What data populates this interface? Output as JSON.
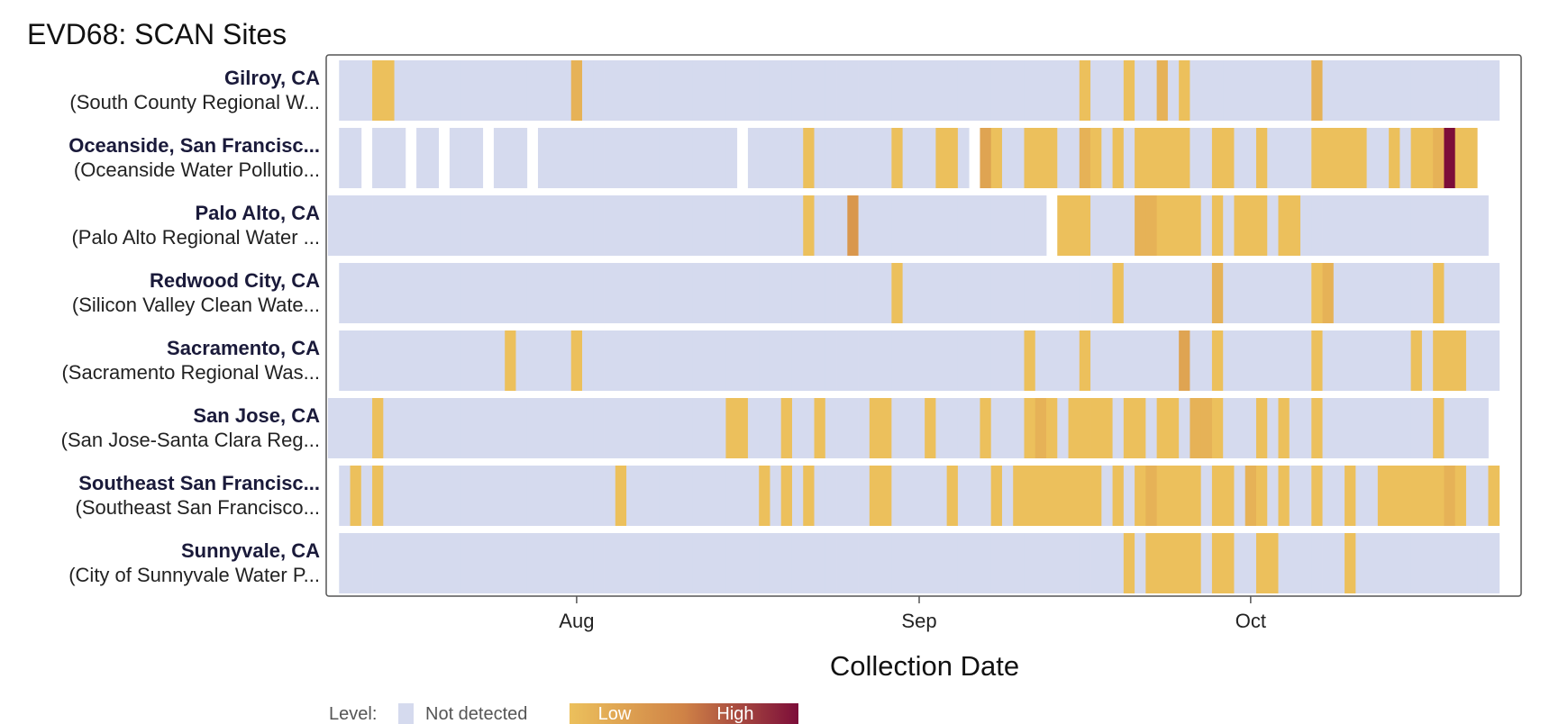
{
  "chart_data": {
    "type": "heatmap",
    "title": "EVD68: SCAN Sites",
    "xlabel": "Collection Date",
    "x_range": [
      "2025-07-10",
      "2025-10-24"
    ],
    "x_ticks": [
      {
        "label": "Aug",
        "date": "2025-08-01"
      },
      {
        "label": "Sep",
        "date": "2025-09-01"
      },
      {
        "label": "Oct",
        "date": "2025-10-01"
      }
    ],
    "legend": {
      "title": "Level:",
      "not_detected": "Not detected",
      "low": "Low",
      "high": "High"
    },
    "colors": {
      "not_detected": "#d5daee",
      "low": "#ecc05c",
      "mid": "#cf8246",
      "high": "#7c0d39",
      "frame": "#555555"
    },
    "level_scale": "0 = Not detected, 1 = Low ... 10 = High",
    "sites": [
      {
        "name": "Gilroy, CA",
        "facility": "(South County Regional W...",
        "start": "2025-07-11",
        "end": "2025-10-23",
        "missing": [],
        "detections": [
          {
            "date": "2025-07-14",
            "level": 1
          },
          {
            "date": "2025-07-15",
            "level": 1
          },
          {
            "date": "2025-08-01",
            "level": 2
          },
          {
            "date": "2025-09-16",
            "level": 1
          },
          {
            "date": "2025-09-20",
            "level": 1
          },
          {
            "date": "2025-09-23",
            "level": 2
          },
          {
            "date": "2025-09-25",
            "level": 1
          },
          {
            "date": "2025-10-07",
            "level": 2
          }
        ]
      },
      {
        "name": "Oceanside, San Francisc...",
        "facility": "(Oceanside Water Pollutio...",
        "start": "2025-07-11",
        "end": "2025-10-21",
        "missing": [
          "2025-07-13",
          "2025-07-17",
          "2025-07-20",
          "2025-07-24",
          "2025-07-28",
          "2025-08-16",
          "2025-09-06"
        ],
        "detections": [
          {
            "date": "2025-08-22",
            "level": 1
          },
          {
            "date": "2025-08-30",
            "level": 1
          },
          {
            "date": "2025-09-03",
            "level": 1
          },
          {
            "date": "2025-09-04",
            "level": 1
          },
          {
            "date": "2025-09-07",
            "level": 3
          },
          {
            "date": "2025-09-08",
            "level": 1
          },
          {
            "date": "2025-09-11",
            "level": 1
          },
          {
            "date": "2025-09-12",
            "level": 1
          },
          {
            "date": "2025-09-13",
            "level": 1
          },
          {
            "date": "2025-09-16",
            "level": 2
          },
          {
            "date": "2025-09-17",
            "level": 1
          },
          {
            "date": "2025-09-19",
            "level": 1
          },
          {
            "date": "2025-09-21",
            "level": 1
          },
          {
            "date": "2025-09-22",
            "level": 1
          },
          {
            "date": "2025-09-23",
            "level": 1
          },
          {
            "date": "2025-09-24",
            "level": 1
          },
          {
            "date": "2025-09-25",
            "level": 1
          },
          {
            "date": "2025-09-28",
            "level": 1
          },
          {
            "date": "2025-09-29",
            "level": 1
          },
          {
            "date": "2025-10-02",
            "level": 1
          },
          {
            "date": "2025-10-07",
            "level": 1
          },
          {
            "date": "2025-10-08",
            "level": 1
          },
          {
            "date": "2025-10-09",
            "level": 1
          },
          {
            "date": "2025-10-10",
            "level": 1
          },
          {
            "date": "2025-10-11",
            "level": 1
          },
          {
            "date": "2025-10-14",
            "level": 1
          },
          {
            "date": "2025-10-16",
            "level": 1
          },
          {
            "date": "2025-10-17",
            "level": 1
          },
          {
            "date": "2025-10-18",
            "level": 2
          },
          {
            "date": "2025-10-19",
            "level": 10
          },
          {
            "date": "2025-10-20",
            "level": 1
          },
          {
            "date": "2025-10-21",
            "level": 1
          }
        ]
      },
      {
        "name": "Palo Alto, CA",
        "facility": "(Palo Alto Regional Water ...",
        "start": "2025-07-10",
        "end": "2025-10-22",
        "missing": [
          "2025-09-13"
        ],
        "detections": [
          {
            "date": "2025-08-22",
            "level": 1
          },
          {
            "date": "2025-08-26",
            "level": 4
          },
          {
            "date": "2025-09-14",
            "level": 1
          },
          {
            "date": "2025-09-15",
            "level": 1
          },
          {
            "date": "2025-09-16",
            "level": 1
          },
          {
            "date": "2025-09-21",
            "level": 2
          },
          {
            "date": "2025-09-22",
            "level": 2
          },
          {
            "date": "2025-09-23",
            "level": 1
          },
          {
            "date": "2025-09-24",
            "level": 1
          },
          {
            "date": "2025-09-25",
            "level": 1
          },
          {
            "date": "2025-09-26",
            "level": 1
          },
          {
            "date": "2025-09-28",
            "level": 1
          },
          {
            "date": "2025-09-30",
            "level": 1
          },
          {
            "date": "2025-10-01",
            "level": 1
          },
          {
            "date": "2025-10-02",
            "level": 1
          },
          {
            "date": "2025-10-04",
            "level": 1
          },
          {
            "date": "2025-10-05",
            "level": 1
          }
        ]
      },
      {
        "name": "Redwood City, CA",
        "facility": "(Silicon Valley Clean Wate...",
        "start": "2025-07-11",
        "end": "2025-10-23",
        "missing": [],
        "detections": [
          {
            "date": "2025-08-30",
            "level": 1
          },
          {
            "date": "2025-09-19",
            "level": 1
          },
          {
            "date": "2025-09-28",
            "level": 2
          },
          {
            "date": "2025-10-07",
            "level": 1
          },
          {
            "date": "2025-10-08",
            "level": 2
          },
          {
            "date": "2025-10-18",
            "level": 1
          }
        ]
      },
      {
        "name": "Sacramento, CA",
        "facility": "(Sacramento Regional Was...",
        "start": "2025-07-11",
        "end": "2025-10-23",
        "missing": [],
        "detections": [
          {
            "date": "2025-07-26",
            "level": 1
          },
          {
            "date": "2025-08-01",
            "level": 1
          },
          {
            "date": "2025-09-11",
            "level": 1
          },
          {
            "date": "2025-09-16",
            "level": 1
          },
          {
            "date": "2025-09-25",
            "level": 3
          },
          {
            "date": "2025-09-28",
            "level": 1
          },
          {
            "date": "2025-10-07",
            "level": 1
          },
          {
            "date": "2025-10-16",
            "level": 1
          },
          {
            "date": "2025-10-18",
            "level": 1
          },
          {
            "date": "2025-10-19",
            "level": 1
          },
          {
            "date": "2025-10-20",
            "level": 1
          }
        ]
      },
      {
        "name": "San Jose, CA",
        "facility": "(San Jose-Santa Clara Reg...",
        "start": "2025-07-10",
        "end": "2025-10-22",
        "missing": [],
        "detections": [
          {
            "date": "2025-07-14",
            "level": 1
          },
          {
            "date": "2025-08-15",
            "level": 1
          },
          {
            "date": "2025-08-16",
            "level": 1
          },
          {
            "date": "2025-08-20",
            "level": 1
          },
          {
            "date": "2025-08-23",
            "level": 1
          },
          {
            "date": "2025-08-28",
            "level": 1
          },
          {
            "date": "2025-08-29",
            "level": 1
          },
          {
            "date": "2025-09-02",
            "level": 1
          },
          {
            "date": "2025-09-07",
            "level": 1
          },
          {
            "date": "2025-09-11",
            "level": 1
          },
          {
            "date": "2025-09-12",
            "level": 2
          },
          {
            "date": "2025-09-13",
            "level": 1
          },
          {
            "date": "2025-09-15",
            "level": 1
          },
          {
            "date": "2025-09-16",
            "level": 1
          },
          {
            "date": "2025-09-17",
            "level": 1
          },
          {
            "date": "2025-09-18",
            "level": 1
          },
          {
            "date": "2025-09-20",
            "level": 1
          },
          {
            "date": "2025-09-21",
            "level": 1
          },
          {
            "date": "2025-09-23",
            "level": 1
          },
          {
            "date": "2025-09-24",
            "level": 1
          },
          {
            "date": "2025-09-26",
            "level": 2
          },
          {
            "date": "2025-09-27",
            "level": 2
          },
          {
            "date": "2025-09-28",
            "level": 1
          },
          {
            "date": "2025-10-02",
            "level": 1
          },
          {
            "date": "2025-10-04",
            "level": 1
          },
          {
            "date": "2025-10-07",
            "level": 1
          },
          {
            "date": "2025-10-18",
            "level": 1
          }
        ]
      },
      {
        "name": "Southeast San Francisc...",
        "facility": "(Southeast San Francisco...",
        "start": "2025-07-11",
        "end": "2025-10-23",
        "missing": [],
        "detections": [
          {
            "date": "2025-07-12",
            "level": 1
          },
          {
            "date": "2025-07-14",
            "level": 1
          },
          {
            "date": "2025-08-05",
            "level": 1
          },
          {
            "date": "2025-08-18",
            "level": 1
          },
          {
            "date": "2025-08-20",
            "level": 1
          },
          {
            "date": "2025-08-22",
            "level": 1
          },
          {
            "date": "2025-08-28",
            "level": 1
          },
          {
            "date": "2025-08-29",
            "level": 1
          },
          {
            "date": "2025-09-04",
            "level": 1
          },
          {
            "date": "2025-09-08",
            "level": 1
          },
          {
            "date": "2025-09-10",
            "level": 1
          },
          {
            "date": "2025-09-11",
            "level": 1
          },
          {
            "date": "2025-09-12",
            "level": 1
          },
          {
            "date": "2025-09-13",
            "level": 1
          },
          {
            "date": "2025-09-14",
            "level": 1
          },
          {
            "date": "2025-09-15",
            "level": 1
          },
          {
            "date": "2025-09-16",
            "level": 1
          },
          {
            "date": "2025-09-17",
            "level": 1
          },
          {
            "date": "2025-09-19",
            "level": 1
          },
          {
            "date": "2025-09-21",
            "level": 1
          },
          {
            "date": "2025-09-22",
            "level": 2
          },
          {
            "date": "2025-09-23",
            "level": 1
          },
          {
            "date": "2025-09-24",
            "level": 1
          },
          {
            "date": "2025-09-25",
            "level": 1
          },
          {
            "date": "2025-09-26",
            "level": 1
          },
          {
            "date": "2025-09-28",
            "level": 1
          },
          {
            "date": "2025-09-29",
            "level": 1
          },
          {
            "date": "2025-10-01",
            "level": 2
          },
          {
            "date": "2025-10-02",
            "level": 1
          },
          {
            "date": "2025-10-04",
            "level": 1
          },
          {
            "date": "2025-10-07",
            "level": 1
          },
          {
            "date": "2025-10-10",
            "level": 1
          },
          {
            "date": "2025-10-13",
            "level": 1
          },
          {
            "date": "2025-10-14",
            "level": 1
          },
          {
            "date": "2025-10-15",
            "level": 1
          },
          {
            "date": "2025-10-16",
            "level": 1
          },
          {
            "date": "2025-10-17",
            "level": 1
          },
          {
            "date": "2025-10-18",
            "level": 1
          },
          {
            "date": "2025-10-19",
            "level": 2
          },
          {
            "date": "2025-10-20",
            "level": 1
          },
          {
            "date": "2025-10-23",
            "level": 1
          }
        ]
      },
      {
        "name": "Sunnyvale, CA",
        "facility": "(City of Sunnyvale Water P...",
        "start": "2025-07-11",
        "end": "2025-10-23",
        "missing": [],
        "detections": [
          {
            "date": "2025-09-20",
            "level": 1
          },
          {
            "date": "2025-09-22",
            "level": 1
          },
          {
            "date": "2025-09-23",
            "level": 1
          },
          {
            "date": "2025-09-24",
            "level": 1
          },
          {
            "date": "2025-09-25",
            "level": 1
          },
          {
            "date": "2025-09-26",
            "level": 1
          },
          {
            "date": "2025-09-28",
            "level": 1
          },
          {
            "date": "2025-09-29",
            "level": 1
          },
          {
            "date": "2025-10-02",
            "level": 1
          },
          {
            "date": "2025-10-03",
            "level": 1
          },
          {
            "date": "2025-10-10",
            "level": 1
          }
        ]
      }
    ]
  }
}
